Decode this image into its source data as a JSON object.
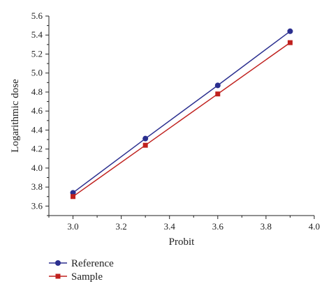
{
  "chart_data": {
    "type": "line",
    "xlabel": "Probit",
    "ylabel": "Logarithmic dose",
    "xlim": [
      2.9,
      4.0
    ],
    "ylim": [
      3.5,
      5.6
    ],
    "xticks": [
      3.0,
      3.2,
      3.4,
      3.6,
      3.8,
      4.0
    ],
    "yticks": [
      3.6,
      3.8,
      4.0,
      4.2,
      4.4,
      4.6,
      4.8,
      5.0,
      5.2,
      5.4,
      5.6
    ],
    "grid": false,
    "legend_position": "bottom-left",
    "series": [
      {
        "name": "Reference",
        "color": "#2b2f8f",
        "marker": "circle",
        "x": [
          3.0,
          3.3,
          3.6,
          3.9
        ],
        "y": [
          3.74,
          4.31,
          4.87,
          5.44
        ]
      },
      {
        "name": "Sample",
        "color": "#c0211e",
        "marker": "square",
        "x": [
          3.0,
          3.3,
          3.6,
          3.9
        ],
        "y": [
          3.7,
          4.24,
          4.78,
          5.32
        ]
      }
    ]
  }
}
